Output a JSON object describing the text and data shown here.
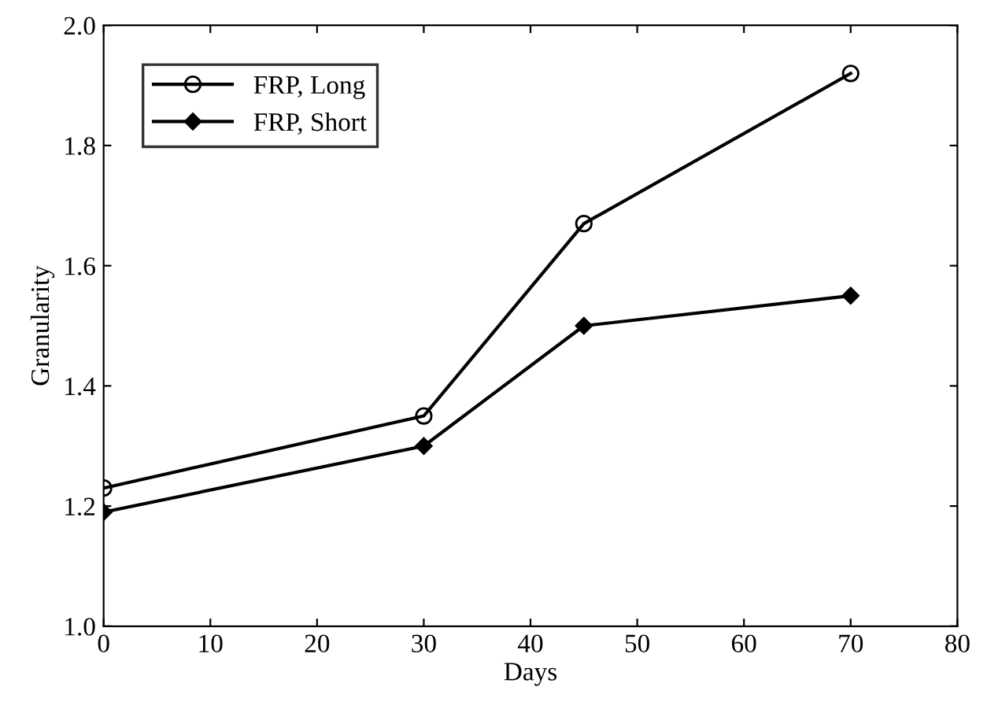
{
  "chart_data": {
    "type": "line",
    "xlabel": "Days",
    "ylabel": "Granularity",
    "x": [
      0,
      30,
      45,
      70
    ],
    "series": [
      {
        "name": "FRP, Long",
        "color": "#000000",
        "marker": "circle",
        "values": [
          1.23,
          1.35,
          1.67,
          1.92
        ]
      },
      {
        "name": "FRP, Short",
        "color": "#000000",
        "marker": "diamond",
        "values": [
          1.19,
          1.3,
          1.5,
          1.55
        ]
      }
    ],
    "xlim": [
      0,
      80
    ],
    "xticks": [
      0,
      10,
      20,
      30,
      40,
      50,
      60,
      70,
      80
    ],
    "ylim": [
      1.0,
      2.0
    ],
    "yticks": [
      {
        "value": 1.0,
        "label": "1.0"
      },
      {
        "value": 1.2,
        "label": "1.2"
      },
      {
        "value": 1.4,
        "label": "1.4"
      },
      {
        "value": 1.6,
        "label": "1.6"
      },
      {
        "value": 1.8,
        "label": "1.8"
      },
      {
        "value": 2.0,
        "label": "2.0"
      }
    ],
    "grid": false,
    "legend": "top left",
    "line_style": "solid"
  }
}
